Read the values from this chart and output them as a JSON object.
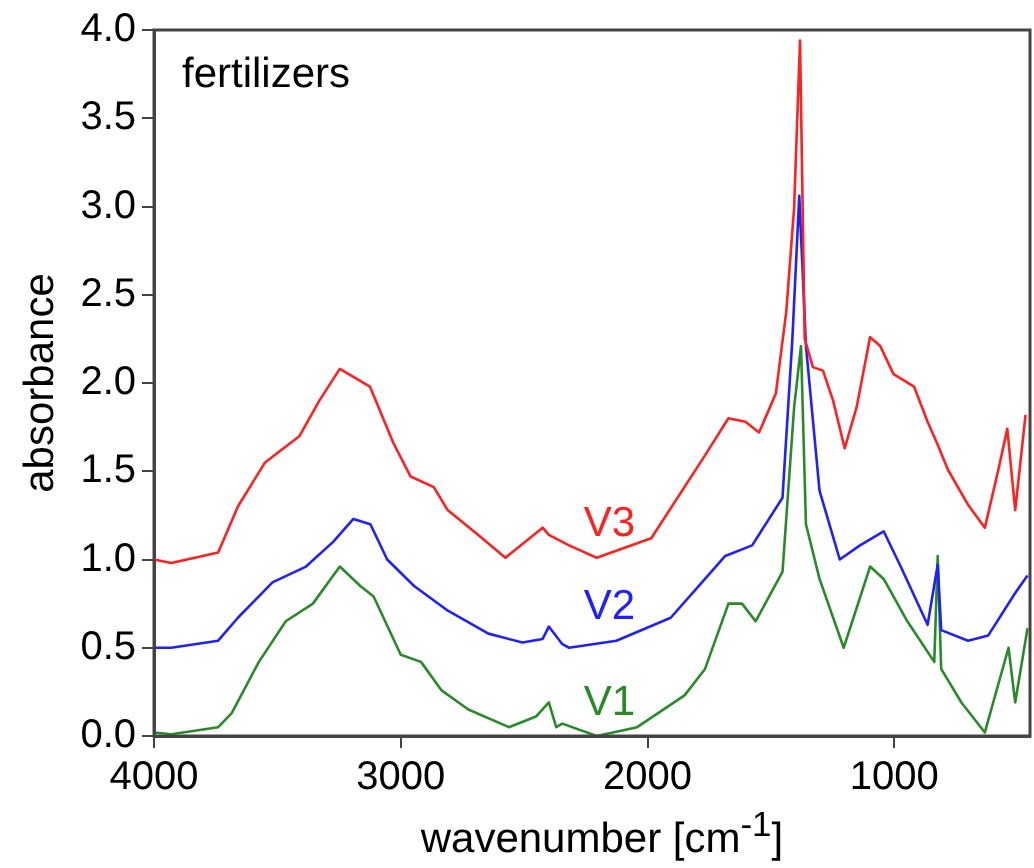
{
  "chart_data": {
    "type": "line",
    "xlabel": "wavenumber [cm$^{-1}$]",
    "ylabel": "absorbance",
    "annotations": [
      "fertilizers"
    ],
    "xlim": [
      4000,
      450
    ],
    "xticks": [
      4000,
      3000,
      2000,
      1000
    ],
    "ylim": [
      0,
      4.0
    ],
    "yticks": [
      {
        "value": 0,
        "label": "0.0"
      },
      {
        "value": 0.5,
        "label": "0.5"
      },
      {
        "value": 1,
        "label": "1.0"
      },
      {
        "value": 1.5,
        "label": "1.5"
      },
      {
        "value": 2,
        "label": "2.0"
      },
      {
        "value": 2.5,
        "label": "2.5"
      },
      {
        "value": 3,
        "label": "3.0"
      },
      {
        "value": 3.5,
        "label": "3.5"
      },
      {
        "value": 4,
        "label": "4.0"
      }
    ],
    "grid": false,
    "legend": false,
    "marker": "none",
    "line_style": "solid",
    "series": [
      {
        "name": "V3",
        "color": "#ff2020",
        "x": [
          4000,
          3930,
          3740,
          3660,
          3550,
          3410,
          3330,
          3247,
          3125,
          3030,
          2960,
          2866,
          2810,
          2670,
          2576,
          2425,
          2400,
          2318,
          2206,
          1985,
          1767,
          1672,
          1603,
          1548,
          1480,
          1438,
          1406,
          1382,
          1363,
          1330,
          1289,
          1248,
          1201,
          1153,
          1098,
          1057,
          1003,
          920,
          865,
          824,
          783,
          701,
          633,
          578,
          542,
          510,
          468
        ],
        "values": [
          1.0,
          0.98,
          1.04,
          1.3,
          1.55,
          1.7,
          1.9,
          2.08,
          1.98,
          1.66,
          1.47,
          1.41,
          1.28,
          1.12,
          1.01,
          1.18,
          1.14,
          1.08,
          1.01,
          1.12,
          1.59,
          1.8,
          1.78,
          1.72,
          1.94,
          2.4,
          2.99,
          3.94,
          2.25,
          2.09,
          2.07,
          1.9,
          1.63,
          1.86,
          2.26,
          2.21,
          2.05,
          1.98,
          1.78,
          1.65,
          1.51,
          1.31,
          1.18,
          1.51,
          1.74,
          1.28,
          1.82
        ]
      },
      {
        "name": "V2",
        "color": "#2020ff",
        "x": [
          4000,
          3930,
          3740,
          3660,
          3520,
          3384,
          3274,
          3192,
          3123,
          3055,
          2946,
          2809,
          2645,
          2507,
          2425,
          2400,
          2345,
          2318,
          2126,
          1906,
          1767,
          1685,
          1576,
          1453,
          1413,
          1385,
          1358,
          1303,
          1221,
          1139,
          1043,
          974,
          865,
          824,
          810,
          701,
          619,
          510,
          460
        ],
        "values": [
          0.5,
          0.5,
          0.54,
          0.67,
          0.87,
          0.96,
          1.1,
          1.23,
          1.2,
          1.0,
          0.85,
          0.71,
          0.58,
          0.53,
          0.55,
          0.62,
          0.52,
          0.5,
          0.54,
          0.67,
          0.89,
          1.02,
          1.08,
          1.35,
          2.25,
          3.06,
          2.21,
          1.39,
          1.0,
          1.08,
          1.16,
          0.96,
          0.63,
          0.97,
          0.6,
          0.54,
          0.57,
          0.81,
          0.91
        ]
      },
      {
        "name": "V1",
        "color": "#2a8a2a",
        "x": [
          4000,
          3930,
          3740,
          3685,
          3575,
          3466,
          3356,
          3247,
          3164,
          3110,
          3000,
          2918,
          2836,
          2726,
          2562,
          2452,
          2400,
          2370,
          2345,
          2206,
          2042,
          1850,
          1767,
          1672,
          1617,
          1562,
          1453,
          1406,
          1378,
          1358,
          1303,
          1205,
          1098,
          1043,
          947,
          838,
          824,
          810,
          728,
          633,
          537,
          510,
          460
        ],
        "values": [
          0.02,
          0.01,
          0.05,
          0.13,
          0.42,
          0.65,
          0.75,
          0.96,
          0.85,
          0.79,
          0.46,
          0.42,
          0.26,
          0.15,
          0.05,
          0.11,
          0.19,
          0.05,
          0.07,
          0.0,
          0.05,
          0.23,
          0.38,
          0.75,
          0.75,
          0.65,
          0.93,
          1.86,
          2.21,
          1.2,
          0.89,
          0.5,
          0.96,
          0.89,
          0.65,
          0.42,
          1.02,
          0.38,
          0.19,
          0.02,
          0.5,
          0.19,
          0.61
        ]
      }
    ]
  }
}
